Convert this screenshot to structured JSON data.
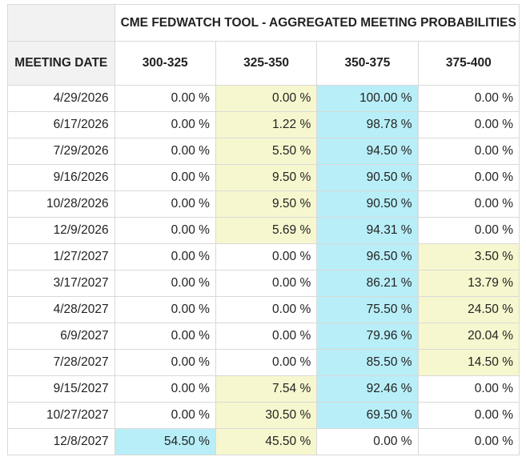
{
  "title": "CME FEDWATCH TOOL - AGGREGATED MEETING PROBABILITIES",
  "columns": {
    "date": "MEETING DATE",
    "ranges": [
      "300-325",
      "325-350",
      "350-375",
      "375-400"
    ]
  },
  "colors": {
    "highest": "#b8eef7",
    "second": "#f7f7cf"
  },
  "rows": [
    {
      "date": "4/29/2026",
      "values": [
        "0.00 %",
        "0.00 %",
        "100.00 %",
        "0.00 %"
      ],
      "highlight": [
        "",
        "yellow",
        "cyan",
        ""
      ]
    },
    {
      "date": "6/17/2026",
      "values": [
        "0.00 %",
        "1.22 %",
        "98.78 %",
        "0.00 %"
      ],
      "highlight": [
        "",
        "yellow",
        "cyan",
        ""
      ]
    },
    {
      "date": "7/29/2026",
      "values": [
        "0.00 %",
        "5.50 %",
        "94.50 %",
        "0.00 %"
      ],
      "highlight": [
        "",
        "yellow",
        "cyan",
        ""
      ]
    },
    {
      "date": "9/16/2026",
      "values": [
        "0.00 %",
        "9.50 %",
        "90.50 %",
        "0.00 %"
      ],
      "highlight": [
        "",
        "yellow",
        "cyan",
        ""
      ]
    },
    {
      "date": "10/28/2026",
      "values": [
        "0.00 %",
        "9.50 %",
        "90.50 %",
        "0.00 %"
      ],
      "highlight": [
        "",
        "yellow",
        "cyan",
        ""
      ]
    },
    {
      "date": "12/9/2026",
      "values": [
        "0.00 %",
        "5.69 %",
        "94.31 %",
        "0.00 %"
      ],
      "highlight": [
        "",
        "yellow",
        "cyan",
        ""
      ]
    },
    {
      "date": "1/27/2027",
      "values": [
        "0.00 %",
        "0.00 %",
        "96.50 %",
        "3.50 %"
      ],
      "highlight": [
        "",
        "",
        "cyan",
        "yellow"
      ]
    },
    {
      "date": "3/17/2027",
      "values": [
        "0.00 %",
        "0.00 %",
        "86.21 %",
        "13.79 %"
      ],
      "highlight": [
        "",
        "",
        "cyan",
        "yellow"
      ]
    },
    {
      "date": "4/28/2027",
      "values": [
        "0.00 %",
        "0.00 %",
        "75.50 %",
        "24.50 %"
      ],
      "highlight": [
        "",
        "",
        "cyan",
        "yellow"
      ]
    },
    {
      "date": "6/9/2027",
      "values": [
        "0.00 %",
        "0.00 %",
        "79.96 %",
        "20.04 %"
      ],
      "highlight": [
        "",
        "",
        "cyan",
        "yellow"
      ]
    },
    {
      "date": "7/28/2027",
      "values": [
        "0.00 %",
        "0.00 %",
        "85.50 %",
        "14.50 %"
      ],
      "highlight": [
        "",
        "",
        "cyan",
        "yellow"
      ]
    },
    {
      "date": "9/15/2027",
      "values": [
        "0.00 %",
        "7.54 %",
        "92.46 %",
        "0.00 %"
      ],
      "highlight": [
        "",
        "yellow",
        "cyan",
        ""
      ]
    },
    {
      "date": "10/27/2027",
      "values": [
        "0.00 %",
        "30.50 %",
        "69.50 %",
        "0.00 %"
      ],
      "highlight": [
        "",
        "yellow",
        "cyan",
        ""
      ]
    },
    {
      "date": "12/8/2027",
      "values": [
        "54.50 %",
        "45.50 %",
        "0.00 %",
        "0.00 %"
      ],
      "highlight": [
        "cyan",
        "yellow",
        "",
        ""
      ]
    }
  ]
}
